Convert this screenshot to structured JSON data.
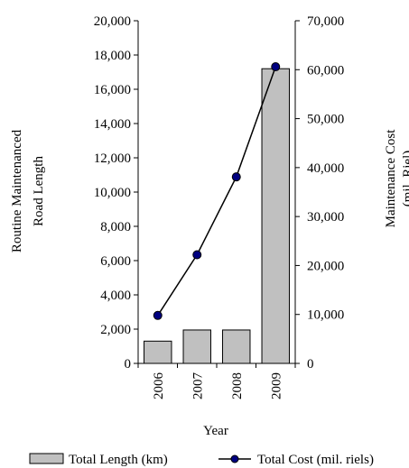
{
  "chart_data": {
    "type": "bar",
    "categories": [
      "2006",
      "2007",
      "2008",
      "2009"
    ],
    "xlabel": "Year",
    "ylabel_left_lines": [
      "Routine Maintenanced",
      "Road Length"
    ],
    "ylabel_right_lines": [
      "Maintenance Cost",
      "(mil. Riel)"
    ],
    "ylim_left": [
      0,
      20000
    ],
    "ylim_right": [
      0,
      70000
    ],
    "left_ticks": [
      "0",
      "2,000",
      "4,000",
      "6,000",
      "8,000",
      "10,000",
      "12,000",
      "14,000",
      "16,000",
      "18,000",
      "20,000"
    ],
    "left_tick_values": [
      0,
      2000,
      4000,
      6000,
      8000,
      10000,
      12000,
      14000,
      16000,
      18000,
      20000
    ],
    "right_ticks": [
      "0",
      "10,000",
      "20,000",
      "30,000",
      "40,000",
      "50,000",
      "60,000",
      "70,000"
    ],
    "right_tick_values": [
      0,
      10000,
      20000,
      30000,
      40000,
      50000,
      60000,
      70000
    ],
    "series": [
      {
        "name": "Total Length (km)",
        "type": "bar",
        "axis": "left",
        "values": [
          1300,
          1950,
          1950,
          17200
        ]
      },
      {
        "name": "Total Cost (mil. riels)",
        "type": "line",
        "axis": "right",
        "values": [
          9800,
          22200,
          38100,
          60600
        ]
      }
    ],
    "legend_position": "bottom",
    "colors": {
      "bar_fill": "#c0c0c0",
      "bar_stroke": "#000000",
      "line": "#000000",
      "marker": "#000080"
    }
  }
}
